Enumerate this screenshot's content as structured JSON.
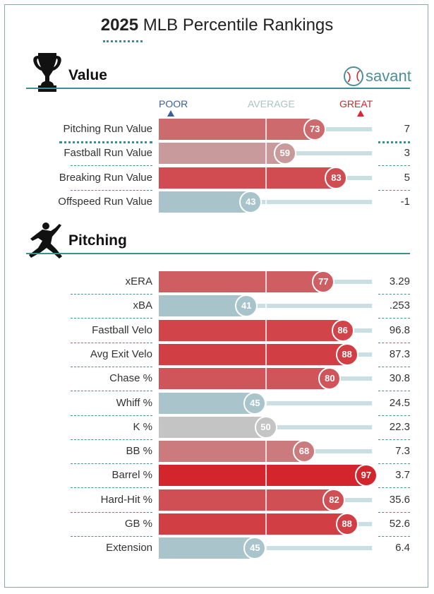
{
  "title": {
    "year": "2025",
    "rest": "MLB Percentile Rankings"
  },
  "brand": {
    "name": "savant"
  },
  "scale": {
    "poor": "POOR",
    "average": "AVERAGE",
    "great": "GREAT"
  },
  "colors": {
    "teal": "#3b8f91",
    "low": "#aac8cc",
    "avg": "#c4c4c4",
    "high": "#d12a2f"
  },
  "chart_data": {
    "type": "bar",
    "title": "2025 MLB Percentile Rankings",
    "xlim": [
      0,
      100
    ],
    "sections": [
      {
        "name": "Value",
        "icon": "trophy-icon",
        "categories": [
          "Pitching Run Value",
          "Fastball Run Value",
          "Breaking Run Value",
          "Offspeed Run Value"
        ],
        "percentiles": [
          73,
          59,
          83,
          43
        ],
        "values": [
          "7",
          "3",
          "5",
          "-1"
        ]
      },
      {
        "name": "Pitching",
        "icon": "pitcher-icon",
        "categories": [
          "xERA",
          "xBA",
          "Fastball Velo",
          "Avg Exit Velo",
          "Chase %",
          "Whiff %",
          "K %",
          "BB %",
          "Barrel %",
          "Hard-Hit %",
          "GB %",
          "Extension"
        ],
        "percentiles": [
          77,
          41,
          86,
          88,
          80,
          45,
          50,
          68,
          97,
          82,
          88,
          45
        ],
        "values": [
          "3.29",
          ".253",
          "96.8",
          "87.3",
          "30.8",
          "24.5",
          "22.3",
          "7.3",
          "3.7",
          "35.6",
          "52.6",
          "6.4"
        ]
      }
    ]
  }
}
